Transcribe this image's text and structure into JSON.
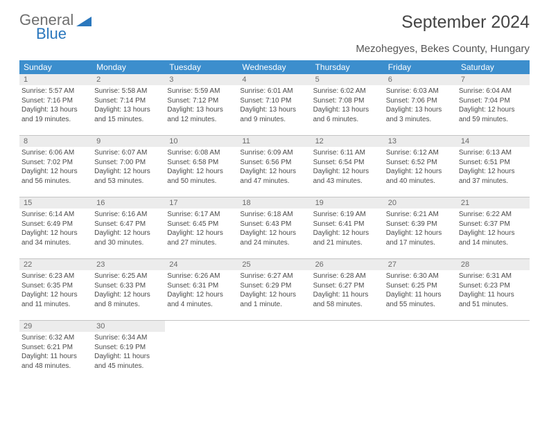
{
  "logo": {
    "word1": "General",
    "word2": "Blue",
    "triangle_color": "#2a77bd"
  },
  "title": "September 2024",
  "location": "Mezohegyes, Bekes County, Hungary",
  "colors": {
    "header_bg": "#3c8ecd",
    "header_fg": "#ffffff",
    "daynum_bg": "#ececec",
    "daynum_fg": "#6a6a6a",
    "body_fg": "#4a4a4a",
    "week_border": "#c4c4c4"
  },
  "day_names": [
    "Sunday",
    "Monday",
    "Tuesday",
    "Wednesday",
    "Thursday",
    "Friday",
    "Saturday"
  ],
  "weeks": [
    [
      {
        "n": "1",
        "sr": "Sunrise: 5:57 AM",
        "ss": "Sunset: 7:16 PM",
        "d1": "Daylight: 13 hours",
        "d2": "and 19 minutes."
      },
      {
        "n": "2",
        "sr": "Sunrise: 5:58 AM",
        "ss": "Sunset: 7:14 PM",
        "d1": "Daylight: 13 hours",
        "d2": "and 15 minutes."
      },
      {
        "n": "3",
        "sr": "Sunrise: 5:59 AM",
        "ss": "Sunset: 7:12 PM",
        "d1": "Daylight: 13 hours",
        "d2": "and 12 minutes."
      },
      {
        "n": "4",
        "sr": "Sunrise: 6:01 AM",
        "ss": "Sunset: 7:10 PM",
        "d1": "Daylight: 13 hours",
        "d2": "and 9 minutes."
      },
      {
        "n": "5",
        "sr": "Sunrise: 6:02 AM",
        "ss": "Sunset: 7:08 PM",
        "d1": "Daylight: 13 hours",
        "d2": "and 6 minutes."
      },
      {
        "n": "6",
        "sr": "Sunrise: 6:03 AM",
        "ss": "Sunset: 7:06 PM",
        "d1": "Daylight: 13 hours",
        "d2": "and 3 minutes."
      },
      {
        "n": "7",
        "sr": "Sunrise: 6:04 AM",
        "ss": "Sunset: 7:04 PM",
        "d1": "Daylight: 12 hours",
        "d2": "and 59 minutes."
      }
    ],
    [
      {
        "n": "8",
        "sr": "Sunrise: 6:06 AM",
        "ss": "Sunset: 7:02 PM",
        "d1": "Daylight: 12 hours",
        "d2": "and 56 minutes."
      },
      {
        "n": "9",
        "sr": "Sunrise: 6:07 AM",
        "ss": "Sunset: 7:00 PM",
        "d1": "Daylight: 12 hours",
        "d2": "and 53 minutes."
      },
      {
        "n": "10",
        "sr": "Sunrise: 6:08 AM",
        "ss": "Sunset: 6:58 PM",
        "d1": "Daylight: 12 hours",
        "d2": "and 50 minutes."
      },
      {
        "n": "11",
        "sr": "Sunrise: 6:09 AM",
        "ss": "Sunset: 6:56 PM",
        "d1": "Daylight: 12 hours",
        "d2": "and 47 minutes."
      },
      {
        "n": "12",
        "sr": "Sunrise: 6:11 AM",
        "ss": "Sunset: 6:54 PM",
        "d1": "Daylight: 12 hours",
        "d2": "and 43 minutes."
      },
      {
        "n": "13",
        "sr": "Sunrise: 6:12 AM",
        "ss": "Sunset: 6:52 PM",
        "d1": "Daylight: 12 hours",
        "d2": "and 40 minutes."
      },
      {
        "n": "14",
        "sr": "Sunrise: 6:13 AM",
        "ss": "Sunset: 6:51 PM",
        "d1": "Daylight: 12 hours",
        "d2": "and 37 minutes."
      }
    ],
    [
      {
        "n": "15",
        "sr": "Sunrise: 6:14 AM",
        "ss": "Sunset: 6:49 PM",
        "d1": "Daylight: 12 hours",
        "d2": "and 34 minutes."
      },
      {
        "n": "16",
        "sr": "Sunrise: 6:16 AM",
        "ss": "Sunset: 6:47 PM",
        "d1": "Daylight: 12 hours",
        "d2": "and 30 minutes."
      },
      {
        "n": "17",
        "sr": "Sunrise: 6:17 AM",
        "ss": "Sunset: 6:45 PM",
        "d1": "Daylight: 12 hours",
        "d2": "and 27 minutes."
      },
      {
        "n": "18",
        "sr": "Sunrise: 6:18 AM",
        "ss": "Sunset: 6:43 PM",
        "d1": "Daylight: 12 hours",
        "d2": "and 24 minutes."
      },
      {
        "n": "19",
        "sr": "Sunrise: 6:19 AM",
        "ss": "Sunset: 6:41 PM",
        "d1": "Daylight: 12 hours",
        "d2": "and 21 minutes."
      },
      {
        "n": "20",
        "sr": "Sunrise: 6:21 AM",
        "ss": "Sunset: 6:39 PM",
        "d1": "Daylight: 12 hours",
        "d2": "and 17 minutes."
      },
      {
        "n": "21",
        "sr": "Sunrise: 6:22 AM",
        "ss": "Sunset: 6:37 PM",
        "d1": "Daylight: 12 hours",
        "d2": "and 14 minutes."
      }
    ],
    [
      {
        "n": "22",
        "sr": "Sunrise: 6:23 AM",
        "ss": "Sunset: 6:35 PM",
        "d1": "Daylight: 12 hours",
        "d2": "and 11 minutes."
      },
      {
        "n": "23",
        "sr": "Sunrise: 6:25 AM",
        "ss": "Sunset: 6:33 PM",
        "d1": "Daylight: 12 hours",
        "d2": "and 8 minutes."
      },
      {
        "n": "24",
        "sr": "Sunrise: 6:26 AM",
        "ss": "Sunset: 6:31 PM",
        "d1": "Daylight: 12 hours",
        "d2": "and 4 minutes."
      },
      {
        "n": "25",
        "sr": "Sunrise: 6:27 AM",
        "ss": "Sunset: 6:29 PM",
        "d1": "Daylight: 12 hours",
        "d2": "and 1 minute."
      },
      {
        "n": "26",
        "sr": "Sunrise: 6:28 AM",
        "ss": "Sunset: 6:27 PM",
        "d1": "Daylight: 11 hours",
        "d2": "and 58 minutes."
      },
      {
        "n": "27",
        "sr": "Sunrise: 6:30 AM",
        "ss": "Sunset: 6:25 PM",
        "d1": "Daylight: 11 hours",
        "d2": "and 55 minutes."
      },
      {
        "n": "28",
        "sr": "Sunrise: 6:31 AM",
        "ss": "Sunset: 6:23 PM",
        "d1": "Daylight: 11 hours",
        "d2": "and 51 minutes."
      }
    ],
    [
      {
        "n": "29",
        "sr": "Sunrise: 6:32 AM",
        "ss": "Sunset: 6:21 PM",
        "d1": "Daylight: 11 hours",
        "d2": "and 48 minutes."
      },
      {
        "n": "30",
        "sr": "Sunrise: 6:34 AM",
        "ss": "Sunset: 6:19 PM",
        "d1": "Daylight: 11 hours",
        "d2": "and 45 minutes."
      },
      {
        "empty": true
      },
      {
        "empty": true
      },
      {
        "empty": true
      },
      {
        "empty": true
      },
      {
        "empty": true
      }
    ]
  ]
}
